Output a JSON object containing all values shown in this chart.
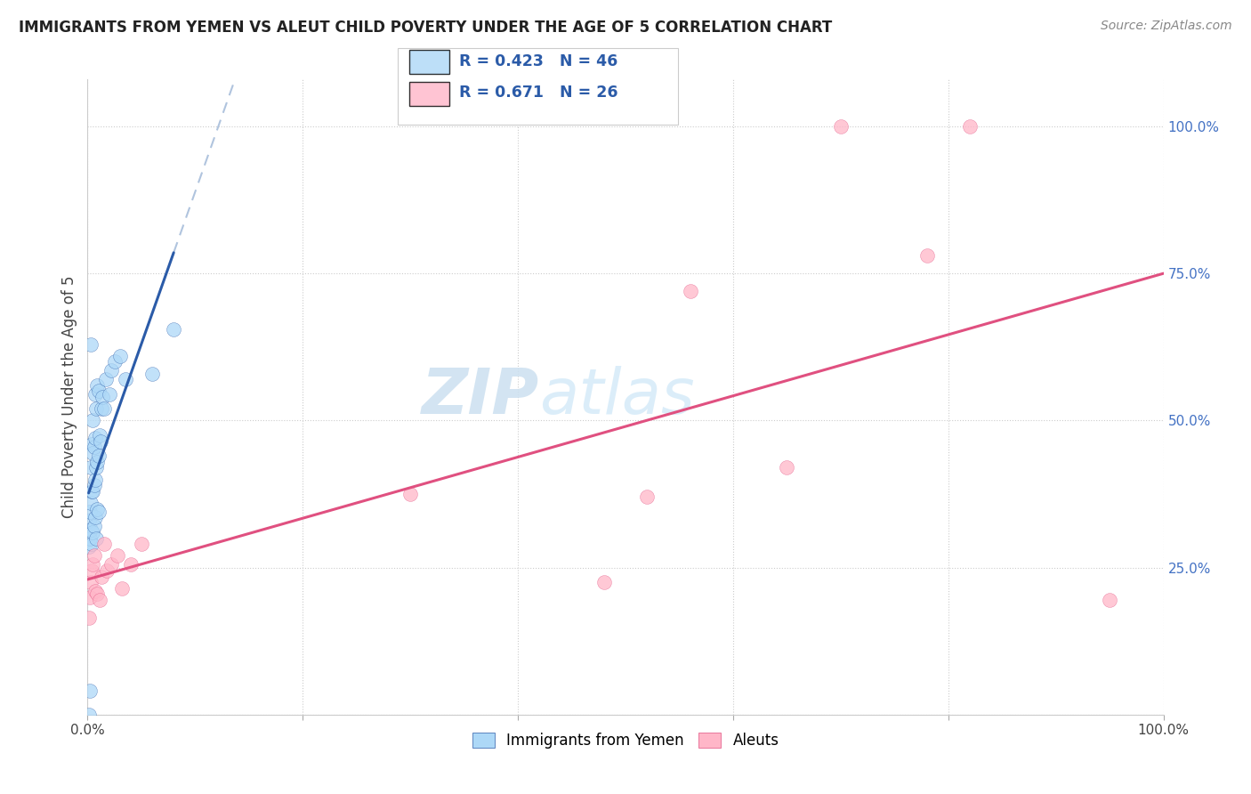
{
  "title": "IMMIGRANTS FROM YEMEN VS ALEUT CHILD POVERTY UNDER THE AGE OF 5 CORRELATION CHART",
  "source": "Source: ZipAtlas.com",
  "ylabel": "Child Poverty Under the Age of 5",
  "blue_color": "#add8f7",
  "pink_color": "#ffb6c8",
  "blue_line_color": "#2B5BA8",
  "pink_line_color": "#e05080",
  "blue_r": 0.423,
  "blue_n": 46,
  "pink_r": 0.671,
  "pink_n": 26,
  "blue_points_x": [
    0.001,
    0.001,
    0.002,
    0.002,
    0.003,
    0.003,
    0.003,
    0.004,
    0.004,
    0.004,
    0.005,
    0.005,
    0.005,
    0.005,
    0.006,
    0.006,
    0.006,
    0.007,
    0.007,
    0.007,
    0.007,
    0.008,
    0.008,
    0.008,
    0.009,
    0.009,
    0.009,
    0.01,
    0.01,
    0.01,
    0.011,
    0.012,
    0.013,
    0.014,
    0.015,
    0.017,
    0.02,
    0.022,
    0.025,
    0.03,
    0.001,
    0.002,
    0.003,
    0.035,
    0.06,
    0.08
  ],
  "blue_points_y": [
    0.285,
    0.33,
    0.3,
    0.345,
    0.315,
    0.36,
    0.42,
    0.29,
    0.38,
    0.46,
    0.31,
    0.38,
    0.445,
    0.5,
    0.32,
    0.39,
    0.455,
    0.335,
    0.4,
    0.47,
    0.545,
    0.3,
    0.42,
    0.52,
    0.35,
    0.43,
    0.56,
    0.345,
    0.44,
    0.55,
    0.475,
    0.465,
    0.52,
    0.54,
    0.52,
    0.57,
    0.545,
    0.585,
    0.6,
    0.61,
    0.0,
    0.04,
    0.63,
    0.57,
    0.58,
    0.655
  ],
  "pink_points_x": [
    0.001,
    0.002,
    0.003,
    0.004,
    0.005,
    0.006,
    0.007,
    0.009,
    0.011,
    0.013,
    0.015,
    0.018,
    0.022,
    0.028,
    0.032,
    0.04,
    0.05,
    0.3,
    0.48,
    0.52,
    0.56,
    0.65,
    0.7,
    0.78,
    0.82,
    0.95
  ],
  "pink_points_y": [
    0.165,
    0.2,
    0.225,
    0.245,
    0.255,
    0.27,
    0.21,
    0.205,
    0.195,
    0.235,
    0.29,
    0.245,
    0.255,
    0.27,
    0.215,
    0.255,
    0.29,
    0.375,
    0.225,
    0.37,
    0.72,
    0.42,
    1.0,
    0.78,
    1.0,
    0.195
  ]
}
